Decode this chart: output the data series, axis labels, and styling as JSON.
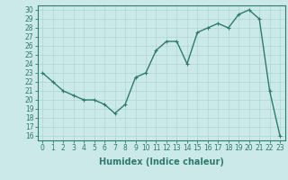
{
  "x": [
    0,
    1,
    2,
    3,
    4,
    5,
    6,
    7,
    8,
    9,
    10,
    11,
    12,
    13,
    14,
    15,
    16,
    17,
    18,
    19,
    20,
    21,
    22,
    23
  ],
  "y": [
    23.0,
    22.0,
    21.0,
    20.5,
    20.0,
    20.0,
    19.5,
    18.5,
    19.5,
    22.5,
    23.0,
    25.5,
    26.5,
    26.5,
    24.0,
    27.5,
    28.0,
    28.5,
    28.0,
    29.5,
    30.0,
    29.0,
    21.0,
    16.0
  ],
  "line_color": "#2d7a6e",
  "marker": "+",
  "bg_color": "#cce9e9",
  "grid_color": "#afd4d4",
  "xlabel": "Humidex (Indice chaleur)",
  "xlim": [
    -0.5,
    23.5
  ],
  "ylim": [
    15.5,
    30.5
  ],
  "yticks": [
    16,
    17,
    18,
    19,
    20,
    21,
    22,
    23,
    24,
    25,
    26,
    27,
    28,
    29,
    30
  ],
  "xticks": [
    0,
    1,
    2,
    3,
    4,
    5,
    6,
    7,
    8,
    9,
    10,
    11,
    12,
    13,
    14,
    15,
    16,
    17,
    18,
    19,
    20,
    21,
    22,
    23
  ],
  "tick_fontsize": 5.5,
  "label_fontsize": 7,
  "linewidth": 1.0,
  "markersize": 3.5,
  "markeredgewidth": 0.8
}
